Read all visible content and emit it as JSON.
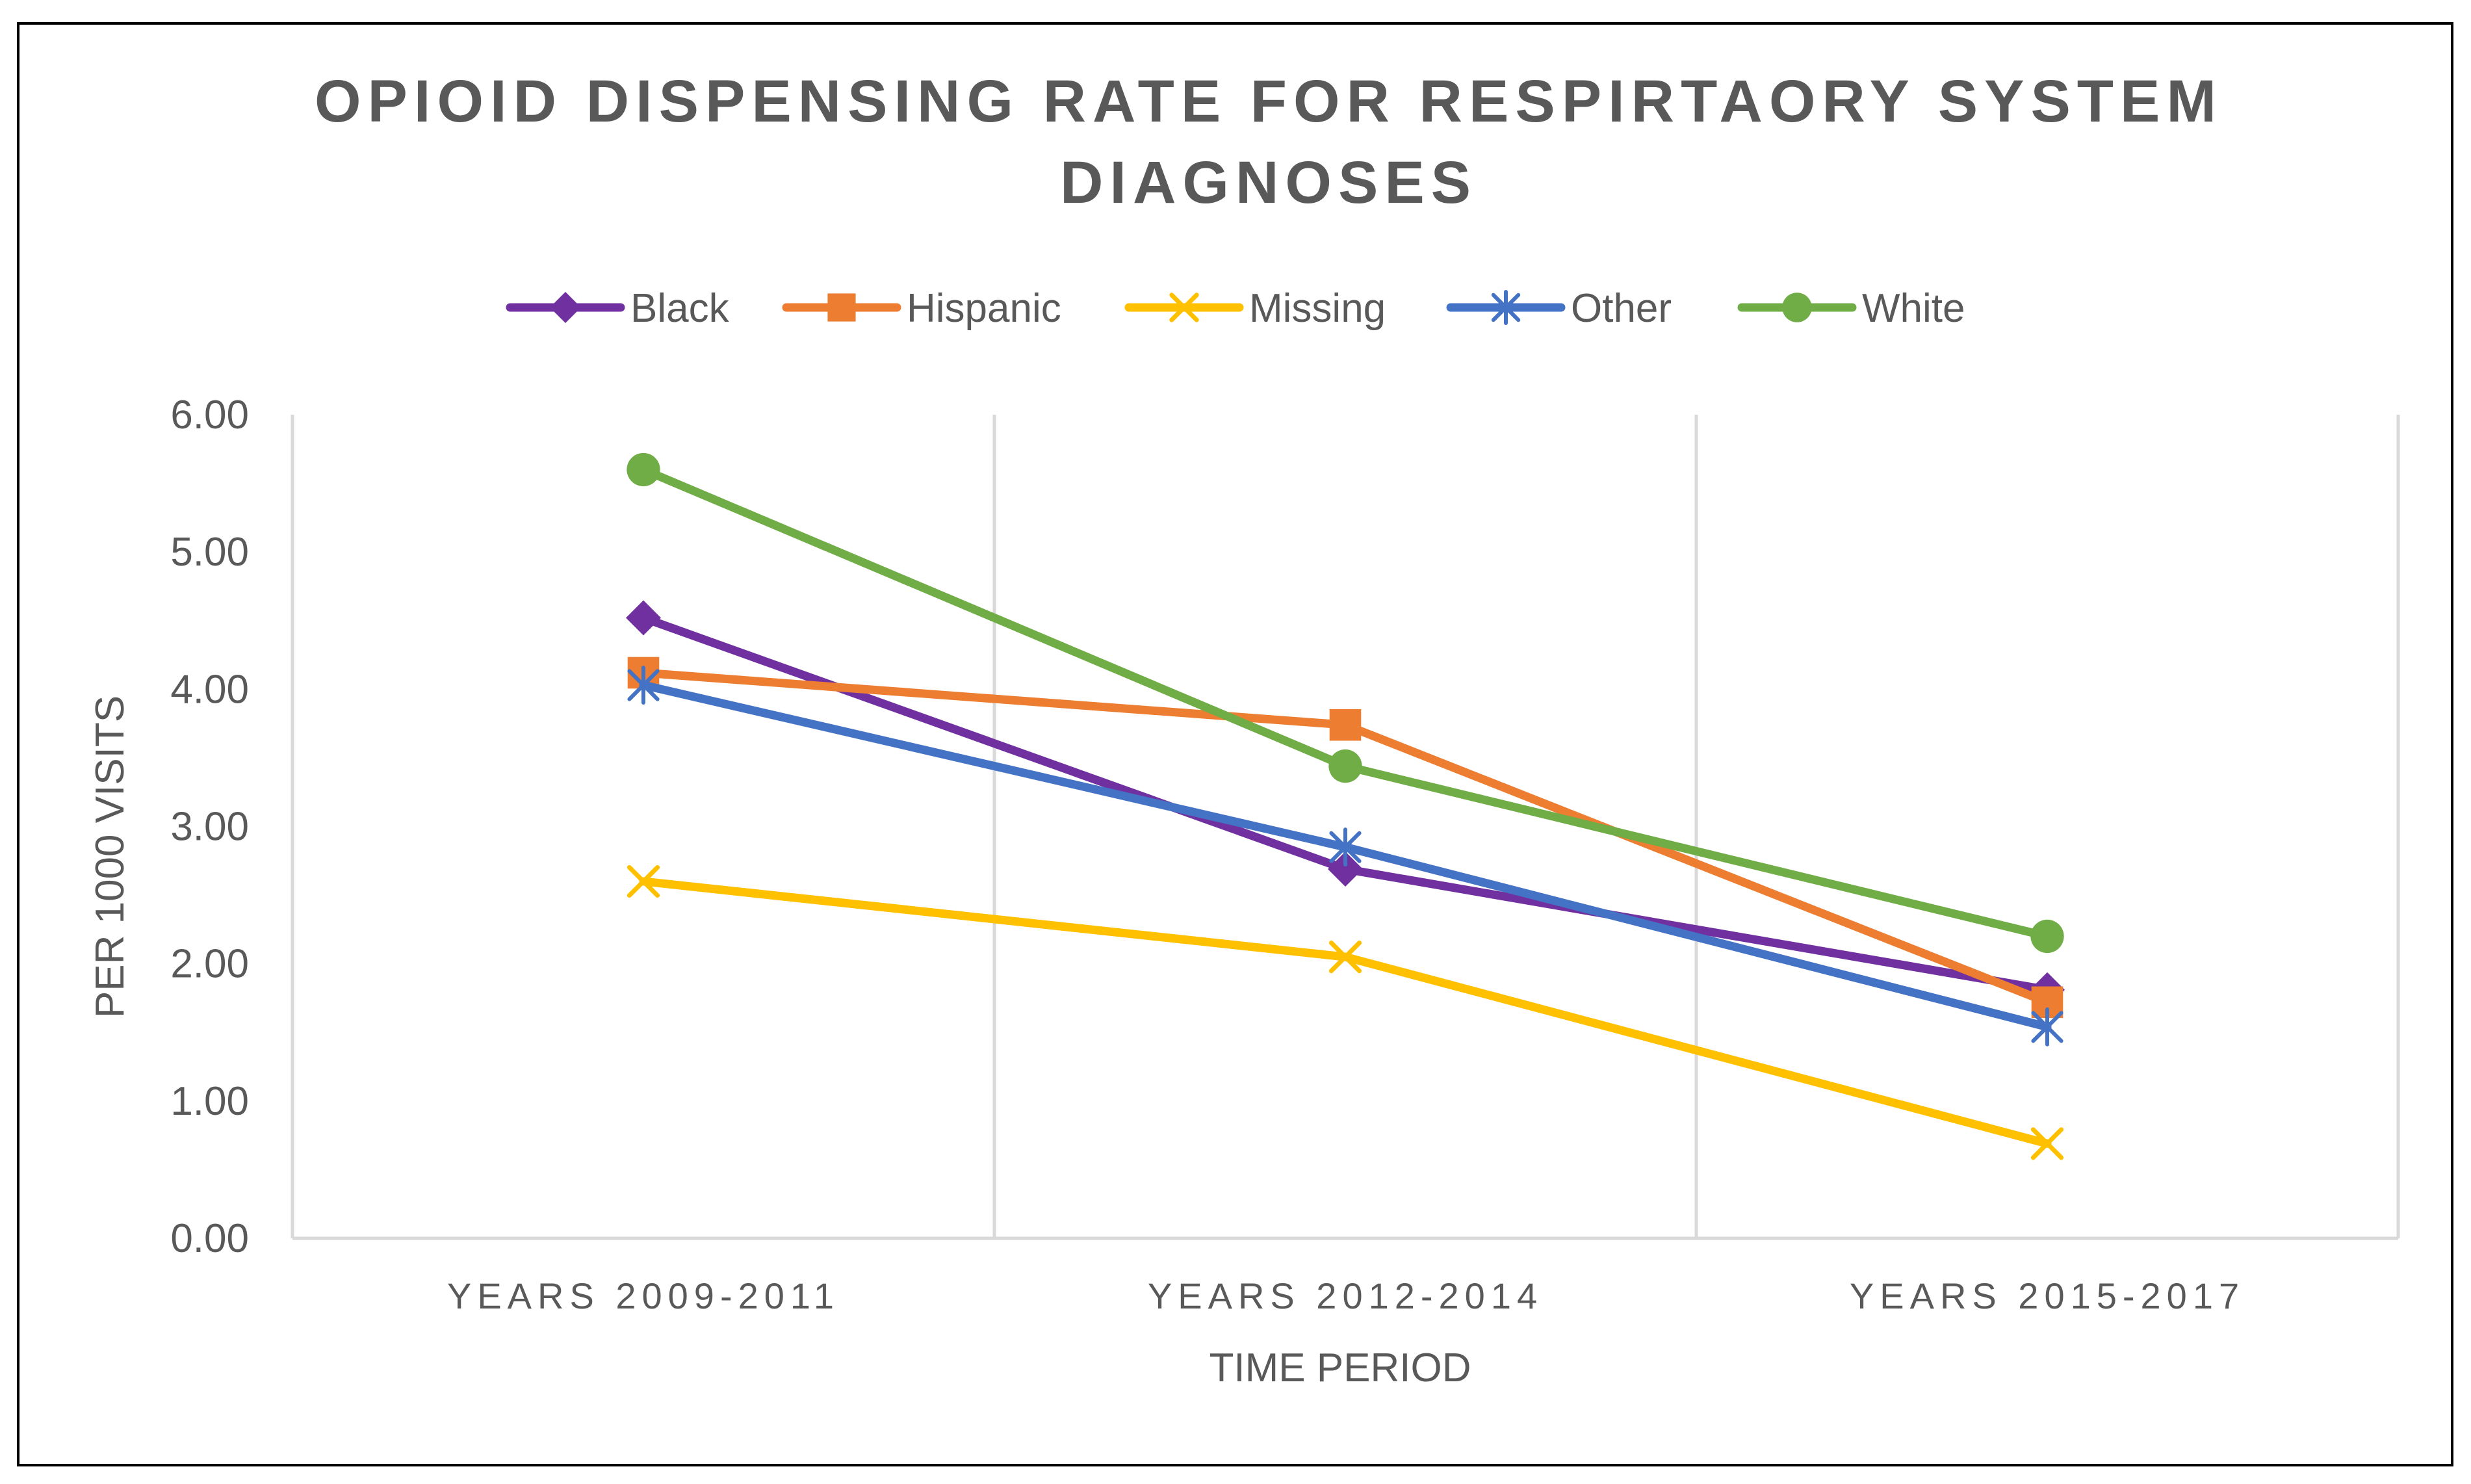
{
  "chart_data": {
    "type": "line",
    "title_lines": [
      "OPIOID DISPENSING RATE FOR RESPIRTAORY SYSTEM",
      "DIAGNOSES"
    ],
    "xlabel": "TIME PERIOD",
    "ylabel": "PER 1000 VISITS",
    "categories": [
      "YEARS 2009-2011",
      "YEARS 2012-2014",
      "YEARS 2015-2017"
    ],
    "ylim": [
      0,
      6
    ],
    "yticks": [
      "0.00",
      "1.00",
      "2.00",
      "3.00",
      "4.00",
      "5.00",
      "6.00"
    ],
    "grid": "vertical category separators",
    "legend_position": "top",
    "series": [
      {
        "name": "Black",
        "color": "#7030A0",
        "marker": "diamond",
        "values": [
          4.52,
          2.69,
          1.81
        ]
      },
      {
        "name": "Hispanic",
        "color": "#ED7D31",
        "marker": "square",
        "values": [
          4.12,
          3.74,
          1.72
        ]
      },
      {
        "name": "Missing",
        "color": "#FFC000",
        "marker": "x",
        "values": [
          2.6,
          2.05,
          0.69
        ]
      },
      {
        "name": "Other",
        "color": "#4472C4",
        "marker": "asterisk",
        "values": [
          4.03,
          2.85,
          1.54
        ]
      },
      {
        "name": "White",
        "color": "#70AD47",
        "marker": "circle",
        "values": [
          5.6,
          3.44,
          2.2
        ]
      }
    ]
  },
  "colors": {
    "text": "#595959",
    "axis": "#D9D9D9",
    "frame": "#000000"
  }
}
